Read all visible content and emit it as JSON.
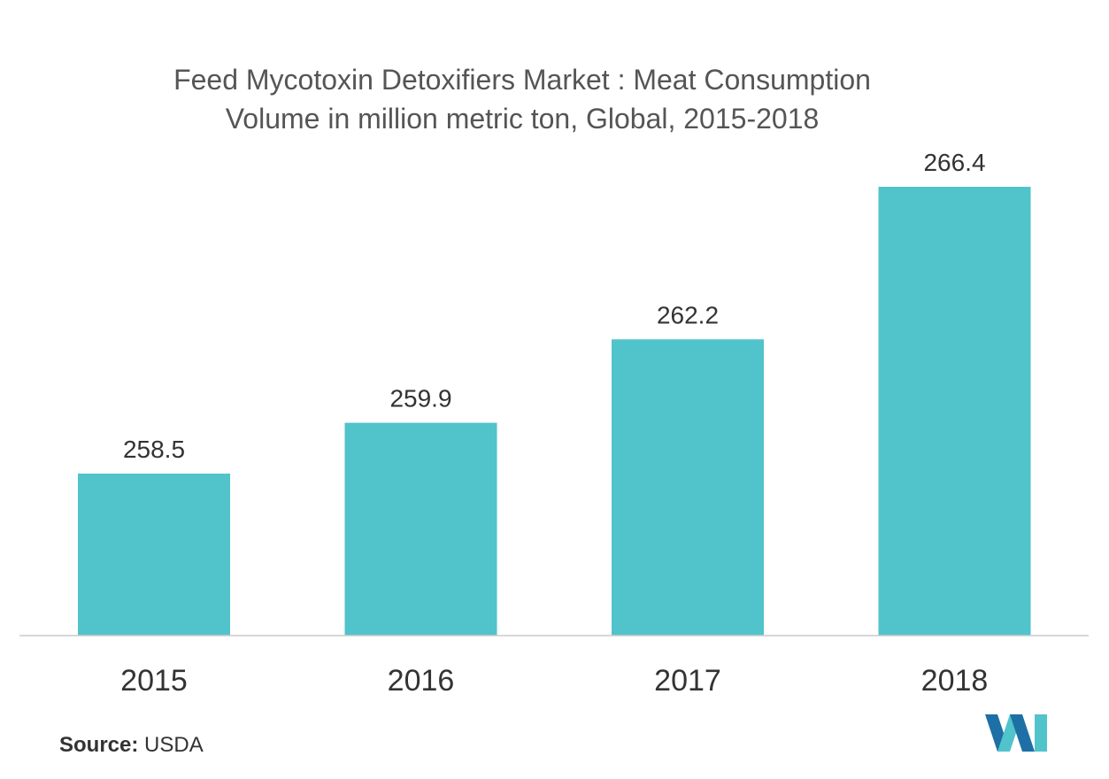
{
  "chart_data": {
    "type": "bar",
    "title_lines": [
      "Feed Mycotoxin Detoxifiers Market : Meat Consumption",
      "Volume in million metric ton, Global, 2015-2018"
    ],
    "categories": [
      "2015",
      "2016",
      "2017",
      "2018"
    ],
    "values": [
      258.5,
      259.9,
      262.2,
      266.4
    ],
    "value_labels": [
      "258.5",
      "259.9",
      "262.2",
      "266.4"
    ],
    "xlabel": "",
    "ylabel": "",
    "grid": false,
    "legend": "none",
    "bar_color": "#51c3cb"
  },
  "source": {
    "label": "Source:",
    "value": "USDA"
  },
  "logo": {
    "icon": "mordor-intelligence-logo-icon",
    "colors": [
      "#1d6fa5",
      "#51c3cb"
    ]
  }
}
